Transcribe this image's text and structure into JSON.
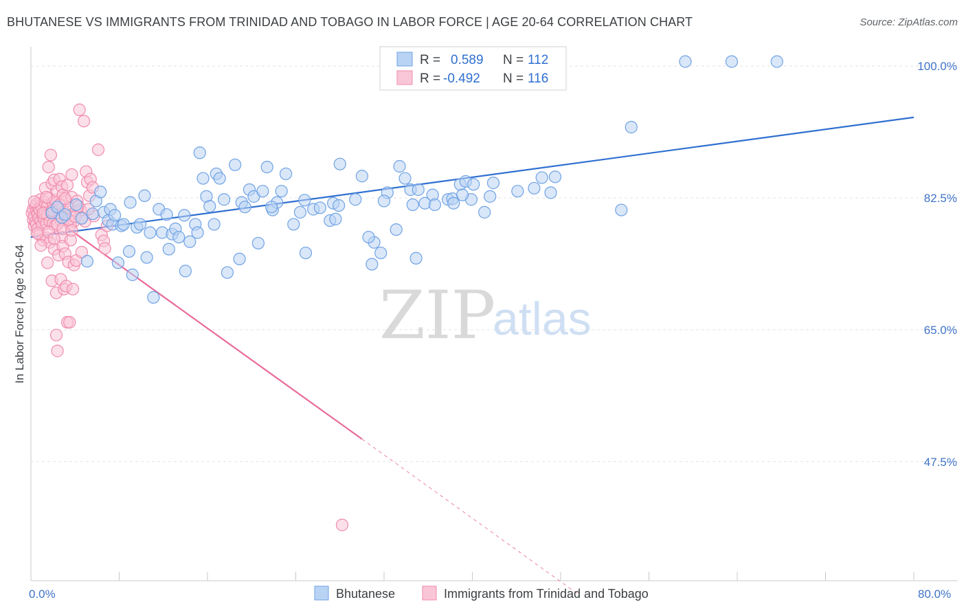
{
  "header": {
    "title": "BHUTANESE VS IMMIGRANTS FROM TRINIDAD AND TOBAGO IN LABOR FORCE | AGE 20-64 CORRELATION CHART",
    "source": "Source: ZipAtlas.com"
  },
  "watermark": {
    "zip": "ZIP",
    "atlas": "atlas"
  },
  "colors": {
    "blue": "#6fa2e4",
    "blue_fill": "#b9d3f4",
    "blue_line": "#2f6fd0",
    "pink": "#f08bac",
    "pink_fill": "#f9c6d7",
    "pink_line": "#e8699a",
    "grid": "#e3e3e3",
    "tick_text": "#3f73c8"
  },
  "legend": {
    "r_label": "R =",
    "n_label": "N =",
    "rows": [
      {
        "series": "Bhutanese",
        "r": "0.589",
        "n": "112"
      },
      {
        "series": "Immigrants from Trinidad and Tobago",
        "r": "-0.492",
        "n": "116"
      }
    ]
  },
  "bottom_legend": [
    "Bhutanese",
    "Immigrants from Trinidad and Tobago"
  ],
  "chart_data": {
    "type": "scatter",
    "title": "BHUTANESE VS IMMIGRANTS FROM TRINIDAD AND TOBAGO IN LABOR FORCE | AGE 20-64 CORRELATION CHART",
    "xlabel": "",
    "ylabel": "In Labor Force | Age 20-64",
    "xlim": [
      0,
      80
    ],
    "ylim": [
      31.7,
      103.3
    ],
    "x_tick_labels": [
      "0.0%",
      "80.0%"
    ],
    "y_ticks": [
      47.5,
      65.0,
      82.5,
      100.0
    ],
    "y_tick_labels": [
      "47.5%",
      "65.0%",
      "82.5%",
      "100.0%"
    ],
    "grid": true,
    "legend_position": "top-center",
    "series": [
      {
        "name": "Bhutanese",
        "r": 0.589,
        "n": 112,
        "trend": {
          "x": [
            0,
            80
          ],
          "y": [
            77.3,
            93.2
          ]
        },
        "points": [
          [
            1.9,
            80.5
          ],
          [
            2.4,
            81.3
          ],
          [
            2.8,
            79.9
          ],
          [
            3.1,
            80.3
          ],
          [
            4.1,
            81.6
          ],
          [
            4.6,
            79.8
          ],
          [
            5.1,
            74.1
          ],
          [
            5.6,
            80.4
          ],
          [
            5.9,
            82.1
          ],
          [
            6.3,
            83.3
          ],
          [
            6.6,
            80.6
          ],
          [
            7.0,
            79.5
          ],
          [
            7.2,
            81.0
          ],
          [
            7.4,
            79.0
          ],
          [
            7.6,
            80.2
          ],
          [
            7.9,
            73.9
          ],
          [
            8.2,
            78.8
          ],
          [
            8.4,
            79.0
          ],
          [
            8.9,
            75.4
          ],
          [
            9.0,
            81.9
          ],
          [
            9.2,
            72.3
          ],
          [
            9.6,
            78.6
          ],
          [
            9.9,
            79.0
          ],
          [
            10.3,
            82.8
          ],
          [
            10.5,
            74.6
          ],
          [
            10.8,
            77.9
          ],
          [
            11.1,
            69.3
          ],
          [
            11.6,
            81.0
          ],
          [
            11.9,
            77.9
          ],
          [
            12.3,
            80.3
          ],
          [
            12.5,
            75.7
          ],
          [
            12.8,
            77.7
          ],
          [
            13.1,
            78.4
          ],
          [
            13.4,
            77.3
          ],
          [
            13.9,
            80.2
          ],
          [
            14.0,
            72.8
          ],
          [
            14.4,
            76.7
          ],
          [
            14.9,
            79.0
          ],
          [
            15.1,
            77.9
          ],
          [
            15.3,
            88.5
          ],
          [
            15.6,
            85.1
          ],
          [
            15.9,
            82.7
          ],
          [
            16.2,
            81.4
          ],
          [
            16.6,
            79.0
          ],
          [
            16.8,
            85.7
          ],
          [
            17.1,
            85.1
          ],
          [
            17.5,
            82.3
          ],
          [
            17.8,
            72.6
          ],
          [
            18.5,
            86.9
          ],
          [
            18.9,
            74.4
          ],
          [
            19.1,
            81.9
          ],
          [
            19.4,
            81.3
          ],
          [
            19.8,
            83.6
          ],
          [
            20.2,
            82.7
          ],
          [
            20.6,
            76.5
          ],
          [
            21.0,
            83.4
          ],
          [
            21.4,
            86.6
          ],
          [
            21.9,
            80.9
          ],
          [
            22.3,
            81.9
          ],
          [
            22.7,
            83.4
          ],
          [
            23.1,
            85.7
          ],
          [
            23.8,
            79.0
          ],
          [
            24.4,
            80.6
          ],
          [
            24.8,
            82.2
          ],
          [
            24.9,
            75.2
          ],
          [
            25.6,
            81.0
          ],
          [
            27.1,
            79.5
          ],
          [
            27.4,
            81.8
          ],
          [
            27.6,
            79.7
          ],
          [
            29.4,
            82.3
          ],
          [
            30.0,
            85.4
          ],
          [
            30.9,
            73.7
          ],
          [
            31.1,
            76.6
          ],
          [
            31.7,
            75.2
          ],
          [
            32.3,
            83.2
          ],
          [
            33.1,
            78.3
          ],
          [
            33.4,
            86.7
          ],
          [
            33.9,
            85.1
          ],
          [
            34.4,
            83.6
          ],
          [
            34.6,
            81.6
          ],
          [
            34.9,
            74.5
          ],
          [
            35.1,
            83.6
          ],
          [
            35.7,
            81.8
          ],
          [
            36.4,
            82.9
          ],
          [
            37.8,
            82.3
          ],
          [
            38.2,
            82.4
          ],
          [
            38.9,
            84.3
          ],
          [
            39.4,
            84.7
          ],
          [
            39.9,
            82.3
          ],
          [
            39.1,
            82.9
          ],
          [
            40.1,
            84.3
          ],
          [
            41.1,
            80.6
          ],
          [
            41.9,
            84.5
          ],
          [
            44.1,
            83.4
          ],
          [
            54.4,
            91.9
          ],
          [
            53.5,
            80.9
          ],
          [
            59.3,
            100.6
          ],
          [
            63.5,
            100.6
          ],
          [
            67.6,
            100.6
          ],
          [
            46.3,
            85.2
          ],
          [
            47.5,
            85.3
          ],
          [
            45.6,
            83.8
          ],
          [
            47.1,
            83.2
          ],
          [
            41.6,
            82.7
          ],
          [
            38.3,
            81.8
          ],
          [
            36.6,
            81.6
          ],
          [
            30.6,
            77.3
          ],
          [
            32.0,
            82.1
          ],
          [
            26.2,
            81.2
          ],
          [
            21.8,
            81.3
          ],
          [
            28.0,
            87.0
          ],
          [
            27.9,
            81.5
          ]
        ]
      },
      {
        "name": "Immigrants from Trinidad and Tobago",
        "r": -0.492,
        "n": 116,
        "trend": {
          "x": [
            0,
            30.0
          ],
          "y": [
            82.0,
            50.5
          ]
        },
        "trend_dashed": {
          "x": [
            30.0,
            49.5
          ],
          "y": [
            50.5,
            30.0
          ]
        },
        "points": [
          [
            0.1,
            80.5
          ],
          [
            0.2,
            81.0
          ],
          [
            0.2,
            79.6
          ],
          [
            0.3,
            80.1
          ],
          [
            0.3,
            78.8
          ],
          [
            0.4,
            81.4
          ],
          [
            0.4,
            79.3
          ],
          [
            0.5,
            80.8
          ],
          [
            0.5,
            79.0
          ],
          [
            0.5,
            81.7
          ],
          [
            0.6,
            80.4
          ],
          [
            0.6,
            78.4
          ],
          [
            0.7,
            81.1
          ],
          [
            0.7,
            79.8
          ],
          [
            0.8,
            77.6
          ],
          [
            0.8,
            80.9
          ],
          [
            0.9,
            82.3
          ],
          [
            0.9,
            79.5
          ],
          [
            1.0,
            81.2
          ],
          [
            1.0,
            78.9
          ],
          [
            1.1,
            80.1
          ],
          [
            1.1,
            76.9
          ],
          [
            1.2,
            82.0
          ],
          [
            1.2,
            79.7
          ],
          [
            1.3,
            80.6
          ],
          [
            1.3,
            83.8
          ],
          [
            1.4,
            79.1
          ],
          [
            1.4,
            77.2
          ],
          [
            1.5,
            81.5
          ],
          [
            1.5,
            80.3
          ],
          [
            1.5,
            73.9
          ],
          [
            1.6,
            86.6
          ],
          [
            1.6,
            82.5
          ],
          [
            1.7,
            79.4
          ],
          [
            1.7,
            76.6
          ],
          [
            1.8,
            88.2
          ],
          [
            1.8,
            80.6
          ],
          [
            1.9,
            84.4
          ],
          [
            1.9,
            71.5
          ],
          [
            2.0,
            81.8
          ],
          [
            2.0,
            79.1
          ],
          [
            2.1,
            84.9
          ],
          [
            2.1,
            75.7
          ],
          [
            2.2,
            82.2
          ],
          [
            2.2,
            78.8
          ],
          [
            2.3,
            64.3
          ],
          [
            2.3,
            69.9
          ],
          [
            2.4,
            83.4
          ],
          [
            2.4,
            62.2
          ],
          [
            2.5,
            81.0
          ],
          [
            2.5,
            74.9
          ],
          [
            2.6,
            85.0
          ],
          [
            2.6,
            80.3
          ],
          [
            2.7,
            71.7
          ],
          [
            2.7,
            79.5
          ],
          [
            2.8,
            84.0
          ],
          [
            2.8,
            77.3
          ],
          [
            2.9,
            82.9
          ],
          [
            2.9,
            76.1
          ],
          [
            3.0,
            80.7
          ],
          [
            3.0,
            70.4
          ],
          [
            3.1,
            79.8
          ],
          [
            3.1,
            75.1
          ],
          [
            3.2,
            82.1
          ],
          [
            3.2,
            70.8
          ],
          [
            3.3,
            84.2
          ],
          [
            3.3,
            66.0
          ],
          [
            3.4,
            81.2
          ],
          [
            3.4,
            74.0
          ],
          [
            3.5,
            66.0
          ],
          [
            3.5,
            80.1
          ],
          [
            3.6,
            76.9
          ],
          [
            3.6,
            78.9
          ],
          [
            3.7,
            85.6
          ],
          [
            3.7,
            82.6
          ],
          [
            3.8,
            70.4
          ],
          [
            3.9,
            79.4
          ],
          [
            3.9,
            73.6
          ],
          [
            4.1,
            80.8
          ],
          [
            4.1,
            74.2
          ],
          [
            4.2,
            82.1
          ],
          [
            4.4,
            94.2
          ],
          [
            4.5,
            80.9
          ],
          [
            4.6,
            75.3
          ],
          [
            4.8,
            92.7
          ],
          [
            4.9,
            79.4
          ],
          [
            5.0,
            86.0
          ],
          [
            5.1,
            84.6
          ],
          [
            5.3,
            82.8
          ],
          [
            5.4,
            85.0
          ],
          [
            5.6,
            83.9
          ],
          [
            5.7,
            80.1
          ],
          [
            6.1,
            88.9
          ],
          [
            6.4,
            77.6
          ],
          [
            6.6,
            76.8
          ],
          [
            6.7,
            75.8
          ],
          [
            6.9,
            78.8
          ],
          [
            28.2,
            39.1
          ],
          [
            0.3,
            82.0
          ],
          [
            0.6,
            77.8
          ],
          [
            0.9,
            76.2
          ],
          [
            1.1,
            80.5
          ],
          [
            1.4,
            82.6
          ],
          [
            1.6,
            78.0
          ],
          [
            1.9,
            80.8
          ],
          [
            2.1,
            77.1
          ],
          [
            2.4,
            79.0
          ],
          [
            2.6,
            81.6
          ],
          [
            2.9,
            78.4
          ],
          [
            3.1,
            82.4
          ],
          [
            3.4,
            79.6
          ],
          [
            3.7,
            78.2
          ],
          [
            4.0,
            80.0
          ],
          [
            4.3,
            81.4
          ],
          [
            4.6,
            79.8
          ],
          [
            5.2,
            81.0
          ]
        ]
      }
    ]
  }
}
